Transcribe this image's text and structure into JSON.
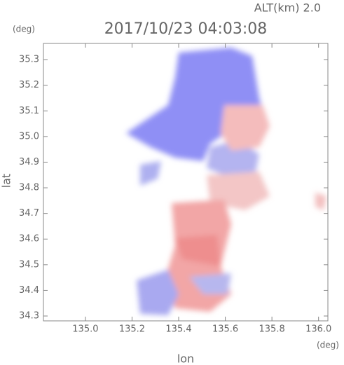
{
  "chart_data": {
    "type": "image",
    "title": "2017/10/23 04:03:08",
    "subtitle": "ALT(km) 2.0",
    "x_label": "lon",
    "y_label": "lat",
    "x_unit": "(deg)",
    "y_unit": "(deg)",
    "xlim": [
      134.82,
      136.04
    ],
    "ylim": [
      34.281,
      35.363
    ],
    "xticks": [
      {
        "value": 135.0,
        "label": "135.0"
      },
      135.2,
      135.4,
      135.6,
      135.8,
      {
        "value": 136.0,
        "label": "136.0"
      }
    ],
    "yticks": [
      34.3,
      34.4,
      34.5,
      34.6,
      34.7,
      34.8,
      34.9,
      {
        "value": 35.0,
        "label": "35.0"
      },
      35.1,
      35.2,
      35.3
    ]
  }
}
